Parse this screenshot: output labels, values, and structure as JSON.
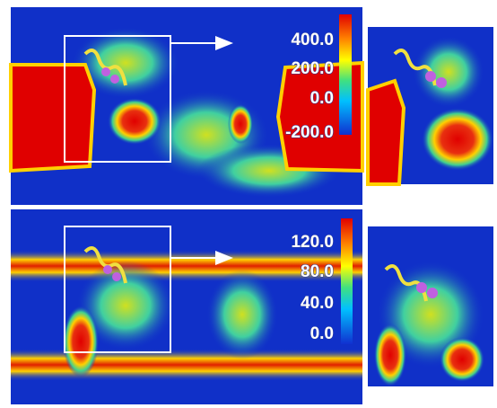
{
  "panels": [
    {
      "colorbar": {
        "labels": [
          "400.0",
          "200.0",
          "0.0",
          "-200.0"
        ]
      }
    },
    {
      "colorbar": {
        "labels": [
          "120.0",
          "80.0",
          "40.0",
          "0.0"
        ]
      }
    }
  ]
}
